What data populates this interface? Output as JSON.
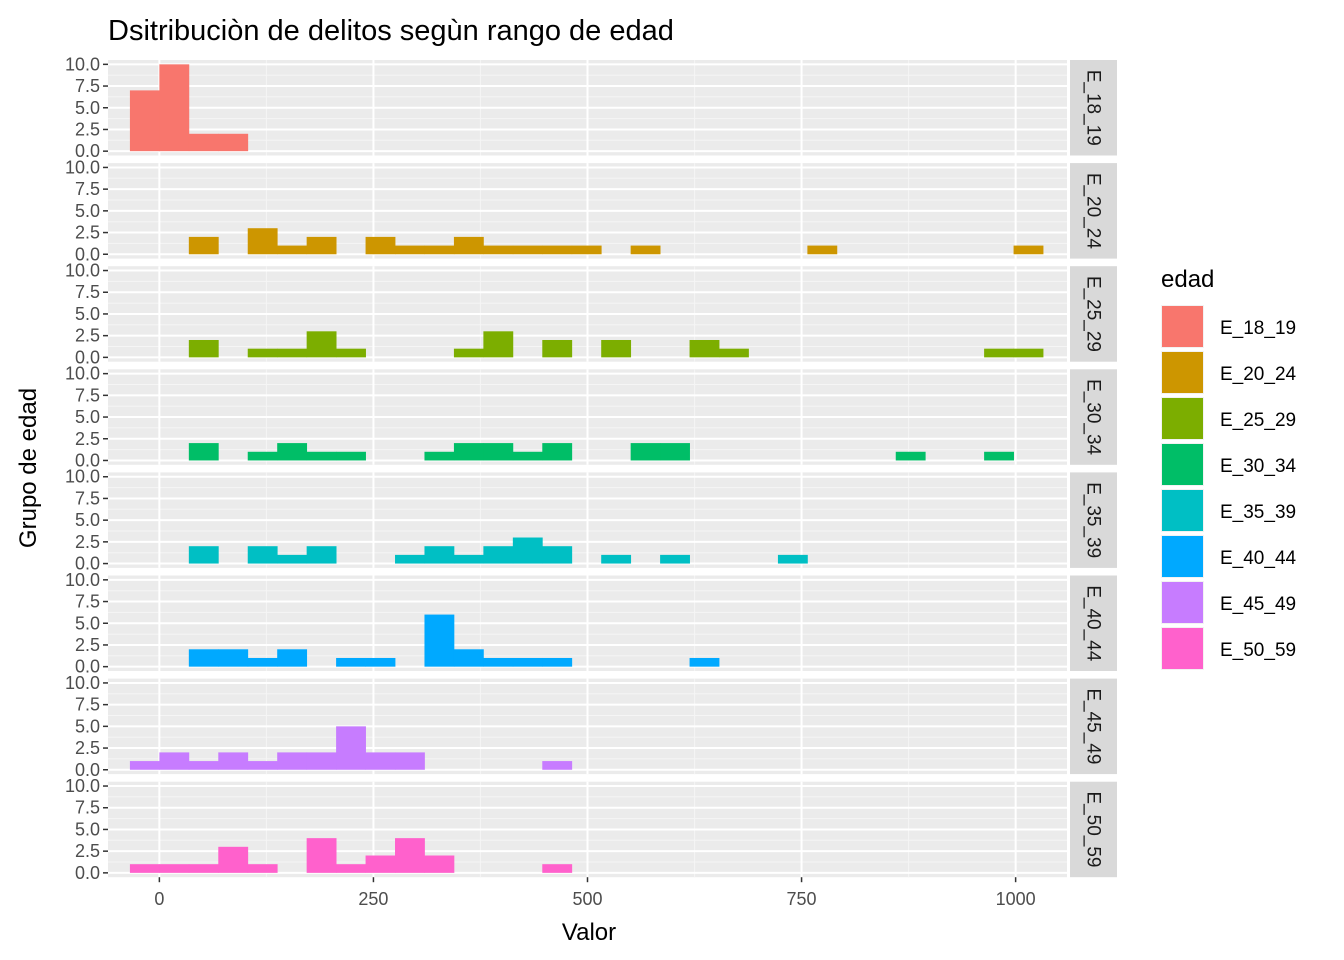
{
  "chart_data": {
    "type": "bar",
    "title": "Dsitribuciòn de delitos segùn rango de edad",
    "xlabel": "Valor",
    "ylabel": "Grupo de edad",
    "legend_title": "edad",
    "legend_position": "right",
    "grid": true,
    "xlim": [
      -60,
      1060
    ],
    "ylim": [
      0,
      10
    ],
    "x_ticks": [
      0,
      250,
      500,
      750,
      1000
    ],
    "x_tick_labels": [
      "0",
      "250",
      "500",
      "750",
      "1000"
    ],
    "y_ticks": [
      0,
      2.5,
      5,
      7.5,
      10
    ],
    "y_tick_labels": [
      "0.0",
      "2.5",
      "5.0",
      "7.5",
      "10.0"
    ],
    "bin_width": 34.4,
    "first_bin_center": 0,
    "series": [
      {
        "name": "E_18_19",
        "color": "#F8766D",
        "counts": [
          7,
          10,
          2,
          2
        ]
      },
      {
        "name": "E_20_24",
        "color": "#CD9600",
        "counts": [
          0,
          2,
          0,
          3,
          1,
          2,
          0,
          2,
          1,
          1,
          2,
          1,
          1,
          1,
          1,
          0,
          1,
          0,
          0,
          0,
          0,
          0,
          1,
          0,
          0,
          0,
          0,
          0,
          0,
          1
        ]
      },
      {
        "name": "E_25_29",
        "color": "#7CAE00",
        "counts": [
          0,
          2,
          0,
          1,
          1,
          3,
          1,
          0,
          0,
          0,
          1,
          3,
          0,
          2,
          0,
          2,
          0,
          0,
          2,
          1,
          0,
          0,
          0,
          0,
          0,
          0,
          0,
          0,
          1,
          1
        ]
      },
      {
        "name": "E_30_34",
        "color": "#00BE67",
        "counts": [
          0,
          2,
          0,
          1,
          2,
          1,
          1,
          0,
          0,
          1,
          2,
          2,
          1,
          2,
          0,
          0,
          2,
          2,
          0,
          0,
          0,
          0,
          0,
          0,
          0,
          1,
          0,
          0,
          1
        ]
      },
      {
        "name": "E_35_39",
        "color": "#00BFC4",
        "counts": [
          0,
          2,
          0,
          2,
          1,
          2,
          0,
          0,
          1,
          2,
          1,
          2,
          3,
          2,
          0,
          1,
          0,
          1,
          0,
          0,
          0,
          1
        ]
      },
      {
        "name": "E_40_44",
        "color": "#00A9FF",
        "counts": [
          0,
          2,
          2,
          1,
          2,
          0,
          1,
          1,
          0,
          6,
          2,
          1,
          1,
          1,
          0,
          0,
          0,
          0,
          1
        ]
      },
      {
        "name": "E_45_49",
        "color": "#C77CFF",
        "counts": [
          1,
          2,
          1,
          2,
          1,
          2,
          2,
          5,
          2,
          2,
          0,
          0,
          0,
          0,
          1
        ]
      },
      {
        "name": "E_50_59",
        "color": "#FF61CC",
        "counts": [
          1,
          1,
          1,
          3,
          1,
          0,
          4,
          1,
          2,
          4,
          2,
          0,
          0,
          0,
          1
        ]
      }
    ],
    "first_bin_index": [
      -0.5,
      0.5,
      0.5,
      0.5,
      0.5,
      0.5,
      -0.5,
      -0.5
    ]
  }
}
